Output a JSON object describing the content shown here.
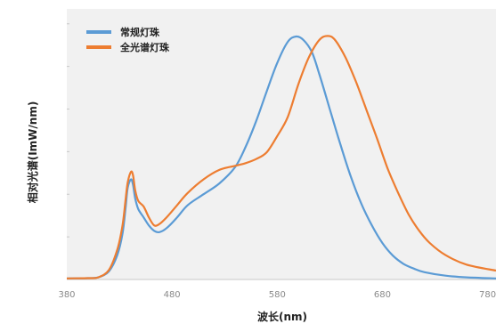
{
  "chart_data": {
    "type": "line",
    "title": "",
    "xlabel": "波长(nm)",
    "ylabel": "相对光谱(ImW/nm)",
    "xlim": [
      380,
      788
    ],
    "ylim": [
      0,
      1.0
    ],
    "x_ticks": [
      380,
      480,
      580,
      680,
      780
    ],
    "grid": false,
    "legend_position": "top-left",
    "series": [
      {
        "name": "常规灯珠",
        "color": "#5b9bd5",
        "points": [
          [
            380,
            0.004
          ],
          [
            400,
            0.005
          ],
          [
            410,
            0.008
          ],
          [
            420,
            0.03
          ],
          [
            428,
            0.09
          ],
          [
            433,
            0.17
          ],
          [
            436,
            0.27
          ],
          [
            438,
            0.34
          ],
          [
            441,
            0.37
          ],
          [
            443,
            0.35
          ],
          [
            445,
            0.3
          ],
          [
            448,
            0.26
          ],
          [
            453,
            0.23
          ],
          [
            458,
            0.2
          ],
          [
            463,
            0.18
          ],
          [
            468,
            0.175
          ],
          [
            475,
            0.19
          ],
          [
            485,
            0.23
          ],
          [
            495,
            0.275
          ],
          [
            510,
            0.315
          ],
          [
            525,
            0.355
          ],
          [
            540,
            0.415
          ],
          [
            550,
            0.49
          ],
          [
            560,
            0.585
          ],
          [
            570,
            0.695
          ],
          [
            580,
            0.8
          ],
          [
            590,
            0.878
          ],
          [
            598,
            0.898
          ],
          [
            605,
            0.885
          ],
          [
            613,
            0.84
          ],
          [
            620,
            0.76
          ],
          [
            630,
            0.63
          ],
          [
            640,
            0.5
          ],
          [
            650,
            0.38
          ],
          [
            660,
            0.28
          ],
          [
            670,
            0.2
          ],
          [
            680,
            0.135
          ],
          [
            690,
            0.088
          ],
          [
            700,
            0.058
          ],
          [
            710,
            0.04
          ],
          [
            720,
            0.027
          ],
          [
            740,
            0.014
          ],
          [
            760,
            0.008
          ],
          [
            788,
            0.004
          ]
        ]
      },
      {
        "name": "全光谱灯珠",
        "color": "#ed7d31",
        "points": [
          [
            380,
            0.004
          ],
          [
            400,
            0.005
          ],
          [
            410,
            0.008
          ],
          [
            420,
            0.035
          ],
          [
            428,
            0.11
          ],
          [
            433,
            0.2
          ],
          [
            436,
            0.3
          ],
          [
            438,
            0.36
          ],
          [
            441,
            0.398
          ],
          [
            443,
            0.385
          ],
          [
            445,
            0.33
          ],
          [
            448,
            0.29
          ],
          [
            453,
            0.27
          ],
          [
            458,
            0.23
          ],
          [
            463,
            0.2
          ],
          [
            468,
            0.205
          ],
          [
            475,
            0.23
          ],
          [
            485,
            0.275
          ],
          [
            495,
            0.32
          ],
          [
            510,
            0.37
          ],
          [
            525,
            0.405
          ],
          [
            540,
            0.42
          ],
          [
            550,
            0.43
          ],
          [
            560,
            0.445
          ],
          [
            570,
            0.47
          ],
          [
            580,
            0.53
          ],
          [
            590,
            0.6
          ],
          [
            600,
            0.72
          ],
          [
            610,
            0.82
          ],
          [
            620,
            0.885
          ],
          [
            628,
            0.9
          ],
          [
            635,
            0.885
          ],
          [
            645,
            0.82
          ],
          [
            655,
            0.73
          ],
          [
            665,
            0.625
          ],
          [
            675,
            0.52
          ],
          [
            685,
            0.41
          ],
          [
            695,
            0.32
          ],
          [
            705,
            0.24
          ],
          [
            715,
            0.18
          ],
          [
            725,
            0.135
          ],
          [
            740,
            0.09
          ],
          [
            760,
            0.055
          ],
          [
            788,
            0.033
          ]
        ]
      }
    ]
  }
}
